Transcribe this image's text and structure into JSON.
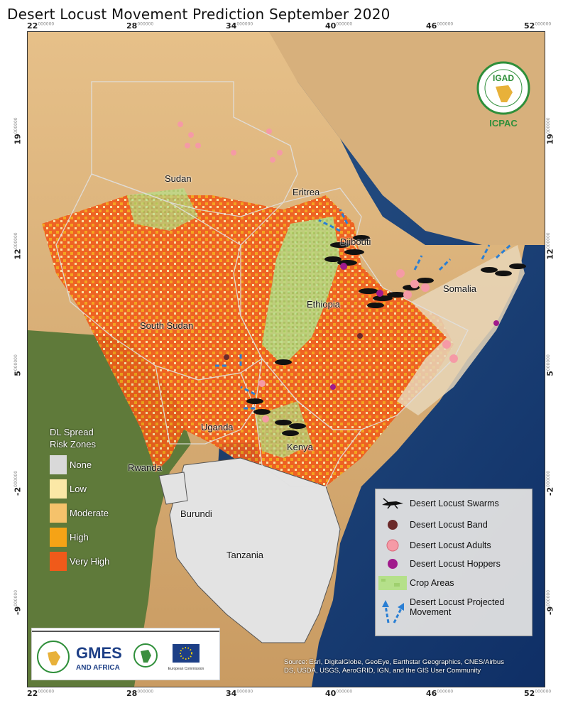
{
  "title": "Desert Locust Movement Prediction September 2020",
  "axes": {
    "x_ticks": [
      "22",
      "28",
      "34",
      "40",
      "46",
      "52"
    ],
    "y_ticks": [
      "19",
      "12",
      "5",
      "-2",
      "-9"
    ],
    "tick_suffix": "000000"
  },
  "countries": {
    "sudan": "Sudan",
    "eritrea": "Eritrea",
    "djibouti": "Djibouti",
    "somalia": "Somalia",
    "ethiopia": "Ethiopia",
    "south_sudan": "South Sudan",
    "uganda": "Uganda",
    "kenya": "Kenya",
    "rwanda": "Rwanda",
    "burundi": "Burundi",
    "tanzania": "Tanzania"
  },
  "risk_legend": {
    "heading_line1": "DL Spread",
    "heading_line2": "Risk Zones",
    "items": [
      {
        "label": "None",
        "color": "#d9d9d9"
      },
      {
        "label": "Low",
        "color": "#fbe8a6"
      },
      {
        "label": "Moderate",
        "color": "#f5c26b"
      },
      {
        "label": "High",
        "color": "#f5a316"
      },
      {
        "label": "Very High",
        "color": "#f05a1a"
      }
    ]
  },
  "legend": {
    "swarms": "Desert Locust Swarms",
    "band": "Desert Locust Band",
    "adults": "Desert Locust Adults",
    "hoppers": "Desert Locust Hoppers",
    "crop": "Crop Areas",
    "projected_line1": "Desert Locust Projected",
    "projected_line2": "Movement"
  },
  "logos": {
    "igad": "IGAD",
    "icpac": "ICPAC",
    "gmes_line1": "GMES",
    "gmes_line2": "AND AFRICA",
    "eu_caption": "European Commission"
  },
  "source_line1": "Source: Esri, DigitalGlobe, GeoEye, Earthstar Geographics, CNES/Airbus",
  "source_line2": "DS, USDA, USGS, AeroGRID, IGN, and the GIS User Community",
  "colors": {
    "swarm": "#111111",
    "band": "#6b2a2a",
    "adults": "#f59aa6",
    "hoppers": "#a01a8c",
    "crop": "#b5e08a",
    "arrow": "#2a7fd4"
  }
}
